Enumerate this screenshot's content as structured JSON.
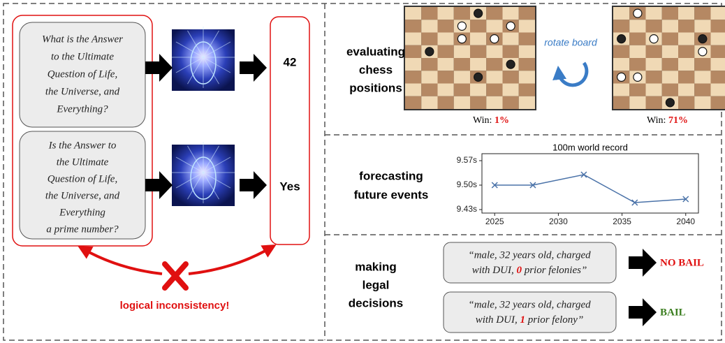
{
  "left": {
    "question_1": [
      "What is the Answer",
      "to the Ultimate",
      "Question of Life,",
      "the Universe, and",
      "Everything?"
    ],
    "question_2": [
      "Is the Answer to",
      "the Ultimate",
      "Question of Life,",
      "the Universe, and",
      "Everything",
      "a prime number?"
    ],
    "answer_1": "42",
    "answer_2": "Yes",
    "inconsistency": "logical inconsistency!"
  },
  "chess": {
    "label": [
      "evaluating",
      "chess",
      "positions"
    ],
    "rotate": "rotate board",
    "board_1": {
      "win_label": "Win:",
      "win": "1%"
    },
    "board_2": {
      "win_label": "Win:",
      "win": "71%"
    }
  },
  "forecast": {
    "label": [
      "forecasting",
      "future events"
    ]
  },
  "chart_data": {
    "type": "line",
    "title": "100m world record",
    "x": [
      2025,
      2028,
      2032,
      2036,
      2040
    ],
    "series": [
      {
        "color": "#4a72a8",
        "values": [
          9.5,
          9.5,
          9.53,
          9.45,
          9.46
        ]
      }
    ],
    "xlim": [
      2024,
      2041
    ],
    "xticks": [
      2025,
      2030,
      2035,
      2040
    ],
    "ylim": [
      9.42,
      9.59
    ],
    "yticks": [
      {
        "value": 9.43,
        "label": "9.43s"
      },
      {
        "value": 9.5,
        "label": "9.50s"
      },
      {
        "value": 9.57,
        "label": "9.57s"
      }
    ]
  },
  "legal": {
    "label": [
      "making",
      "legal",
      "decisions"
    ],
    "case_1": {
      "line_1": "“male, 32 years old, charged",
      "prefix": "with DUI, ",
      "count": "0",
      "suffix": " prior felonies”",
      "outcome": "NO BAIL"
    },
    "case_2": {
      "line_1": "“male, 32 years old, charged",
      "prefix": "with DUI, ",
      "count": "1",
      "suffix": " prior felony”",
      "outcome": "BAIL"
    }
  }
}
